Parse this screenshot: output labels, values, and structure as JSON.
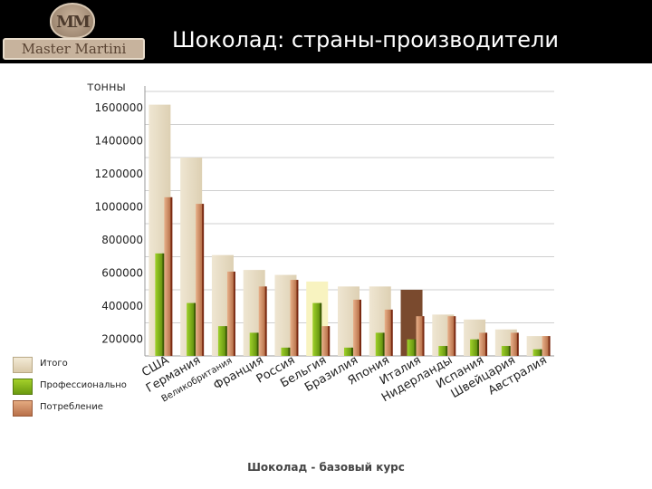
{
  "header": {
    "logo_text": "Master Martini",
    "logo_mark": "MM",
    "title": "Шоколад: страны-производители"
  },
  "unit_label": "тонны",
  "footer": "Шоколад - базовый курс",
  "colors": {
    "total": "#e8dcc2",
    "professional": "#8ab820",
    "consumption": "#d4956a",
    "grid": "#cfcfcf"
  },
  "chart_data": {
    "type": "bar",
    "ylabel": "тонны",
    "ylim": [
      0,
      1600000
    ],
    "yticks": [
      1600000,
      1400000,
      1200000,
      1000000,
      800000,
      600000,
      400000,
      200000
    ],
    "grid": true,
    "legend_position": "bottom-left",
    "categories": [
      "США",
      "Германия",
      "Великобритания",
      "Франция",
      "Россия",
      "Бельгия",
      "Бразилия",
      "Япония",
      "Италия",
      "Нидерланды",
      "Испания",
      "Швейцария",
      "Австралия"
    ],
    "series": [
      {
        "name": "Итого",
        "values": [
          1520000,
          1200000,
          610000,
          520000,
          490000,
          450000,
          420000,
          420000,
          400000,
          250000,
          220000,
          160000,
          120000
        ]
      },
      {
        "name": "Профессионально",
        "values": [
          620000,
          320000,
          180000,
          140000,
          50000,
          320000,
          50000,
          140000,
          100000,
          60000,
          100000,
          60000,
          40000
        ]
      },
      {
        "name": "Потребление",
        "values": [
          960000,
          920000,
          510000,
          420000,
          460000,
          180000,
          340000,
          280000,
          240000,
          240000,
          140000,
          140000,
          120000
        ]
      }
    ]
  }
}
